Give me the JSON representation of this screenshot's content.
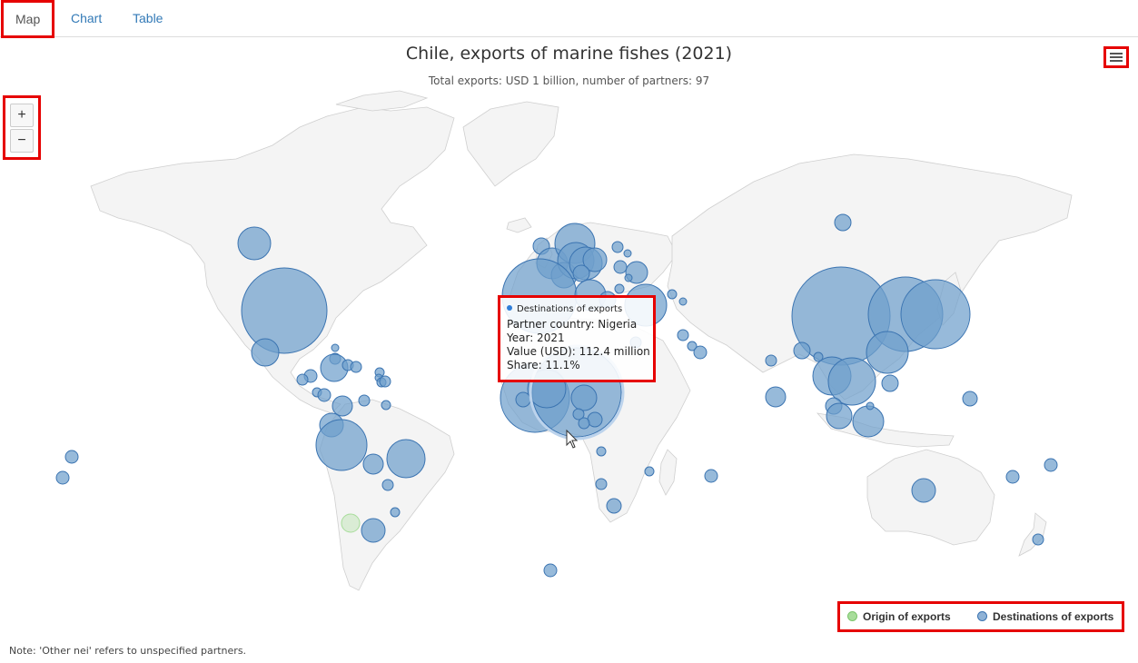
{
  "tabs": [
    {
      "label": "Map",
      "active": true
    },
    {
      "label": "Chart",
      "active": false
    },
    {
      "label": "Table",
      "active": false
    }
  ],
  "title": "Chile, exports of marine fishes (2021)",
  "subtitle": "Total exports: USD 1 billion, number of partners: 97",
  "menu_icon": "hamburger-menu-icon",
  "zoom": {
    "in_label": "+",
    "out_label": "−"
  },
  "tooltip": {
    "header": "Destinations of exports",
    "partner_line": "Partner country: Nigeria",
    "year_line": "Year: 2021",
    "value_line": "Value (USD): 112.4 million",
    "share_line": "Share: 11.1%"
  },
  "legend": {
    "origin_label": "Origin of exports",
    "destinations_label": "Destinations of exports"
  },
  "note": "Note: 'Other nei' refers to unspecified partners.",
  "colors": {
    "destination_fill": "#6f9fcc",
    "destination_stroke": "#3b74b1",
    "origin_fill": "#a8dd9b",
    "land": "#f4f4f4",
    "land_stroke": "#cfcfcf",
    "highlight": "#e60000"
  }
}
